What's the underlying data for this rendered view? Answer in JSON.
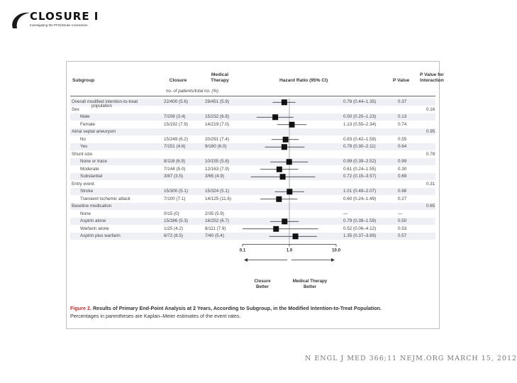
{
  "logo": {
    "title": "CLOSURE I",
    "subtitle": "Investigating the PFO/Stroke Connection"
  },
  "headers": {
    "subgroup": "Subgroup",
    "closure": "Closure",
    "medical": "Medical",
    "therapy": "Therapy",
    "hazard": "Hazard Ratio (95% CI)",
    "pvalue": "P Value",
    "pinter1": "P Value for",
    "pinter2": "Interaction",
    "units": "no. of patients/total no. (%)"
  },
  "rows": [
    {
      "label": "Overall modified intention-to-treat",
      "label2": "population",
      "closure": "22/400 (5.6)",
      "medical": "29/451 (5.9)",
      "hr": "0.78 (0.44–1.35)",
      "p": "0.37",
      "pint": "",
      "indent": false,
      "est": 0.78,
      "lo": 0.44,
      "hi": 1.35,
      "header": false
    },
    {
      "label": "Sex",
      "closure": "",
      "medical": "",
      "hr": "",
      "p": "",
      "pint": "0.16",
      "indent": false,
      "est": null,
      "header": true
    },
    {
      "label": "Male",
      "closure": "7/208 (3.4)",
      "medical": "15/232 (6.8)",
      "hr": "0.50 (0.20–1.23)",
      "p": "0.13",
      "pint": "",
      "indent": true,
      "est": 0.5,
      "lo": 0.2,
      "hi": 1.23,
      "header": false
    },
    {
      "label": "Female",
      "closure": "15/192 (7.9)",
      "medical": "14/219 (7.0)",
      "hr": "1.13 (0.55–2.34)",
      "p": "0.74",
      "pint": "",
      "indent": true,
      "est": 1.13,
      "lo": 0.55,
      "hi": 2.34,
      "header": false
    },
    {
      "label": "Atrial septal aneurysm",
      "closure": "",
      "medical": "",
      "hr": "",
      "p": "",
      "pint": "0.95",
      "indent": false,
      "est": null,
      "header": true
    },
    {
      "label": "No",
      "closure": "15/249 (6.2)",
      "medical": "20/291 (7.4)",
      "hr": "0.83 (0.42–1.59)",
      "p": "0.55",
      "pint": "",
      "indent": true,
      "est": 0.83,
      "lo": 0.42,
      "hi": 1.59,
      "header": false
    },
    {
      "label": "Yes",
      "closure": "7/151 (4.6)",
      "medical": "9/160 (6.0)",
      "hr": "0.78 (0.30–2.11)",
      "p": "0.64",
      "pint": "",
      "indent": true,
      "est": 0.78,
      "lo": 0.3,
      "hi": 2.11,
      "header": false
    },
    {
      "label": "Shunt size",
      "closure": "",
      "medical": "",
      "hr": "",
      "p": "",
      "pint": "0.78",
      "indent": false,
      "est": null,
      "header": true
    },
    {
      "label": "None or trace",
      "closure": "8/118 (6.9)",
      "medical": "10/155 (5.8)",
      "hr": "0.99 (0.39–2.52)",
      "p": "0.99",
      "pint": "",
      "indent": true,
      "est": 0.99,
      "lo": 0.39,
      "hi": 2.52,
      "header": false
    },
    {
      "label": "Moderate",
      "closure": "7/144 (5.0)",
      "medical": "12/163 (7.9)",
      "hr": "0.61 (0.24–1.55)",
      "p": "0.30",
      "pint": "",
      "indent": true,
      "est": 0.61,
      "lo": 0.24,
      "hi": 1.55,
      "header": false
    },
    {
      "label": "Substantial",
      "closure": "3/87 (3.5)",
      "medical": "3/65 (4.9)",
      "hr": "0.72 (0.15–3.57)",
      "p": "0.69",
      "pint": "",
      "indent": true,
      "est": 0.72,
      "lo": 0.15,
      "hi": 3.57,
      "header": false
    },
    {
      "label": "Entry event",
      "closure": "",
      "medical": "",
      "hr": "",
      "p": "",
      "pint": "0.31",
      "indent": false,
      "est": null,
      "header": true
    },
    {
      "label": "Stroke",
      "closure": "15/300 (5.1)",
      "medical": "15/324 (5.1)",
      "hr": "1.01 (0.49–2.07)",
      "p": "0.98",
      "pint": "",
      "indent": true,
      "est": 1.01,
      "lo": 0.49,
      "hi": 2.07,
      "header": false
    },
    {
      "label": "Transient ischemic attack",
      "closure": "7/100 (7.1)",
      "medical": "14/125 (11.6)",
      "hr": "0.60 (0.24–1.49)",
      "p": "0.27",
      "pint": "",
      "indent": true,
      "est": 0.6,
      "lo": 0.24,
      "hi": 1.49,
      "header": false
    },
    {
      "label": "Baseline medication",
      "closure": "",
      "medical": "",
      "hr": "",
      "p": "",
      "pint": "0.65",
      "indent": false,
      "est": null,
      "header": true
    },
    {
      "label": "None",
      "closure": "0/15 (0)",
      "medical": "2/35 (5.9)",
      "hr": "—",
      "p": "—",
      "pint": "",
      "indent": true,
      "est": null,
      "header": false
    },
    {
      "label": "Aspirin alone",
      "closure": "15/286 (5.3)",
      "medical": "16/252 (6.7)",
      "hr": "0.79 (0.39–1.59)",
      "p": "0.50",
      "pint": "",
      "indent": true,
      "est": 0.79,
      "lo": 0.39,
      "hi": 1.59,
      "header": false
    },
    {
      "label": "Warfarin alone",
      "closure": "1/25 (4.2)",
      "medical": "8/111 (7.9)",
      "hr": "0.52 (0.06–4.12)",
      "p": "0.53",
      "pint": "",
      "indent": true,
      "est": 0.52,
      "lo": 0.06,
      "hi": 4.12,
      "header": false
    },
    {
      "label": "Aspirin plus warfarin",
      "closure": "6/72 (8.5)",
      "medical": "7/40 (5.4)",
      "hr": "1.35 (0.37–3.89)",
      "p": "0.57",
      "pint": "",
      "indent": true,
      "est": 1.35,
      "lo": 0.37,
      "hi": 3.89,
      "header": false
    }
  ],
  "chart_data": {
    "type": "forest",
    "title": "Results of Primary End-Point Analysis at 2 Years, According to Subgroup, in the Modified Intention-to-Treat Population.",
    "xscale": "log",
    "xlim": [
      0.1,
      10.0
    ],
    "ticks": [
      "0.1",
      "1.0",
      "10.0"
    ],
    "tick_values": [
      0.1,
      1.0,
      10.0
    ],
    "left_label": [
      "Closure",
      "Better"
    ],
    "right_label": [
      "Medical Therapy",
      "Better"
    ]
  },
  "caption": {
    "figure": "Figure 2.",
    "title": "Results of Primary End-Point Analysis at 2 Years, According to Subgroup, in the Modified Intention-to-Treat Population.",
    "note": "Percentages in parentheses are Kaplan–Meier estimates of the event rates."
  },
  "citation": "N ENGL J MED 366;11   NEJM.ORG   MARCH 15, 2012"
}
